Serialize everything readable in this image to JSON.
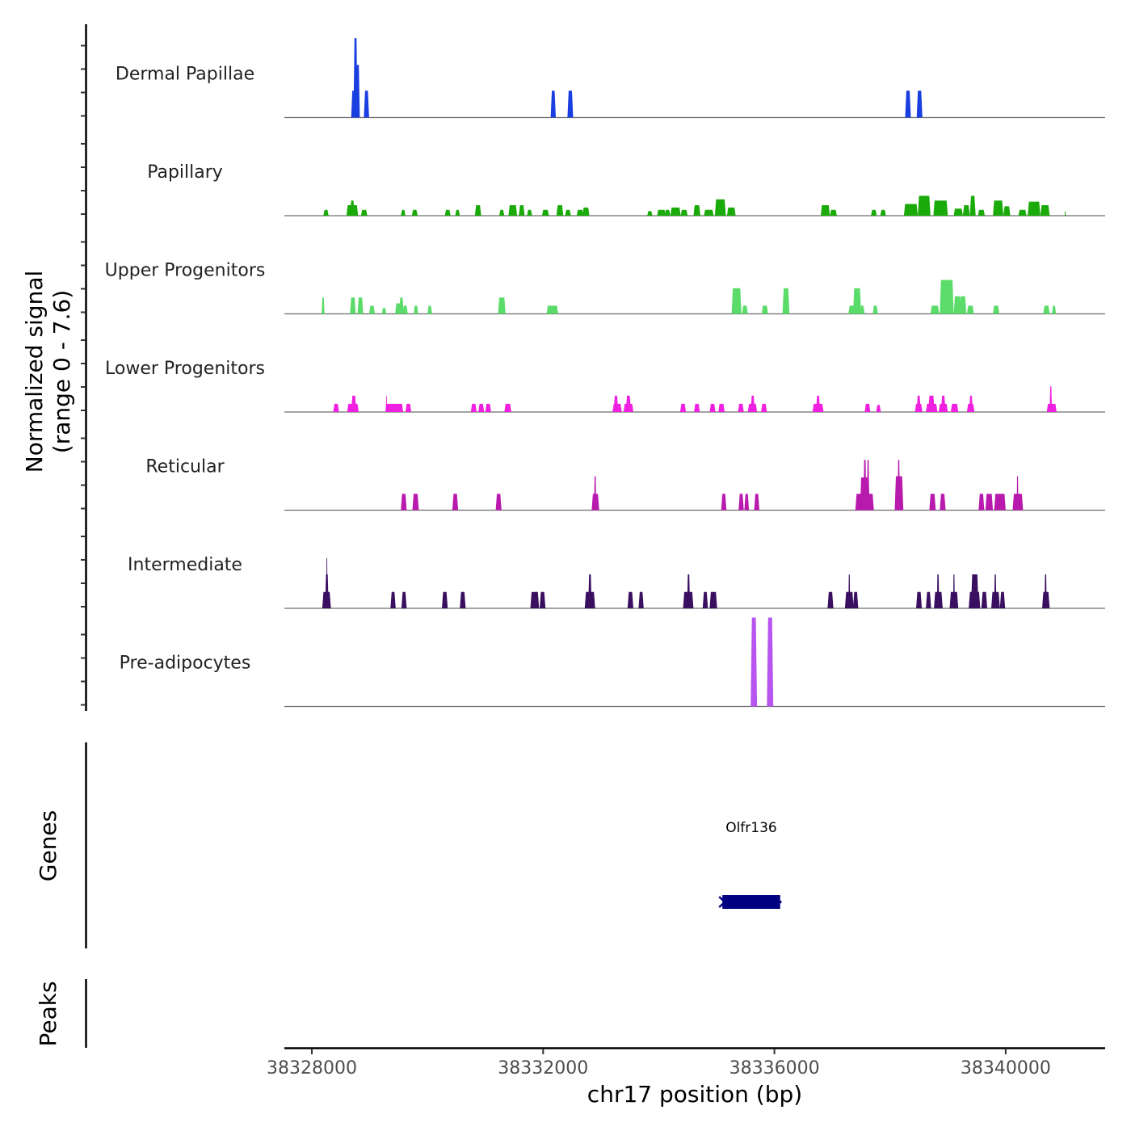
{
  "chart_data": {
    "type": "area",
    "title": "",
    "ylabel": "Normalized signal\n(range 0 - 7.6)",
    "ylabel_lines": [
      "Normalized signal",
      "(range 0 - 7.6)"
    ],
    "xlabel": "chr17 position (bp)",
    "xlim": [
      38327525,
      38341720
    ],
    "ylim": [
      0,
      7.6
    ],
    "x_ticks": [
      38328000,
      38332000,
      38336000,
      38340000
    ],
    "x_tick_labels": [
      "38328000",
      "38332000",
      "38336000",
      "38340000"
    ],
    "grid": false,
    "series": [
      {
        "name": "Dermal Papillae",
        "color": "#1a3fe0",
        "peaks": [
          [
            38328680,
            38328760,
            2.3
          ],
          [
            38328720,
            38328790,
            6.8
          ],
          [
            38328760,
            38328830,
            4.5
          ],
          [
            38328900,
            38328990,
            2.3
          ],
          [
            38332130,
            38332220,
            2.3
          ],
          [
            38332420,
            38332520,
            2.3
          ],
          [
            38338260,
            38338360,
            2.3
          ],
          [
            38338460,
            38338560,
            2.3
          ]
        ]
      },
      {
        "name": "Papillary",
        "color": "#1aaa0a",
        "peaks": [
          [
            38328200,
            38328290,
            0.5
          ],
          [
            38328600,
            38328800,
            0.9
          ],
          [
            38328660,
            38328740,
            1.3
          ],
          [
            38328850,
            38328960,
            0.5
          ],
          [
            38329540,
            38329620,
            0.5
          ],
          [
            38329730,
            38329830,
            0.5
          ],
          [
            38330300,
            38330400,
            0.5
          ],
          [
            38330480,
            38330560,
            0.5
          ],
          [
            38330820,
            38330930,
            0.9
          ],
          [
            38331240,
            38331330,
            0.5
          ],
          [
            38331400,
            38331550,
            0.9
          ],
          [
            38331580,
            38331680,
            0.9
          ],
          [
            38331720,
            38331810,
            0.5
          ],
          [
            38331980,
            38332100,
            0.5
          ],
          [
            38332230,
            38332350,
            0.9
          ],
          [
            38332380,
            38332480,
            0.5
          ],
          [
            38332580,
            38332700,
            0.5
          ],
          [
            38332680,
            38332800,
            0.7
          ],
          [
            38333800,
            38333890,
            0.4
          ],
          [
            38333970,
            38334120,
            0.5
          ],
          [
            38334100,
            38334200,
            0.5
          ],
          [
            38334200,
            38334380,
            0.7
          ],
          [
            38334380,
            38334500,
            0.5
          ],
          [
            38334600,
            38334720,
            0.9
          ],
          [
            38334780,
            38334950,
            0.5
          ],
          [
            38334970,
            38335160,
            1.4
          ],
          [
            38335180,
            38335330,
            0.7
          ],
          [
            38336800,
            38336960,
            0.9
          ],
          [
            38336960,
            38337080,
            0.5
          ],
          [
            38337670,
            38337770,
            0.5
          ],
          [
            38337830,
            38337930,
            0.5
          ],
          [
            38338240,
            38338480,
            1.0
          ],
          [
            38338480,
            38338700,
            1.7
          ],
          [
            38338750,
            38339000,
            1.3
          ],
          [
            38339100,
            38339260,
            0.6
          ],
          [
            38339260,
            38339380,
            0.9
          ],
          [
            38339380,
            38339480,
            1.7
          ],
          [
            38339520,
            38339640,
            0.5
          ],
          [
            38339780,
            38339960,
            1.3
          ],
          [
            38339960,
            38340080,
            0.8
          ],
          [
            38340220,
            38340360,
            0.5
          ],
          [
            38340380,
            38340600,
            1.2
          ],
          [
            38340600,
            38340760,
            0.9
          ],
          [
            38341020,
            38341040,
            0.4
          ]
        ]
      },
      {
        "name": "Upper Progenitors",
        "color": "#5bdc6a",
        "peaks": [
          [
            38328170,
            38328220,
            1.4
          ],
          [
            38328660,
            38328760,
            1.4
          ],
          [
            38328790,
            38328890,
            1.4
          ],
          [
            38328990,
            38329090,
            0.7
          ],
          [
            38329210,
            38329290,
            0.5
          ],
          [
            38329440,
            38329560,
            0.9
          ],
          [
            38329510,
            38329590,
            1.4
          ],
          [
            38329570,
            38329660,
            0.7
          ],
          [
            38329760,
            38329840,
            0.7
          ],
          [
            38330000,
            38330080,
            0.7
          ],
          [
            38331220,
            38331350,
            1.4
          ],
          [
            38332060,
            38332260,
            0.7
          ],
          [
            38335260,
            38335430,
            2.2
          ],
          [
            38335440,
            38335540,
            0.7
          ],
          [
            38335780,
            38335890,
            0.7
          ],
          [
            38336140,
            38336260,
            2.2
          ],
          [
            38337280,
            38337420,
            0.7
          ],
          [
            38337360,
            38337500,
            2.2
          ],
          [
            38337480,
            38337560,
            0.7
          ],
          [
            38337700,
            38337790,
            0.7
          ],
          [
            38338700,
            38338850,
            0.7
          ],
          [
            38338860,
            38339100,
            2.9
          ],
          [
            38339100,
            38339230,
            1.5
          ],
          [
            38339200,
            38339320,
            1.5
          ],
          [
            38339330,
            38339450,
            0.7
          ],
          [
            38339780,
            38339890,
            0.7
          ],
          [
            38340650,
            38340760,
            0.7
          ],
          [
            38340800,
            38340870,
            0.7
          ]
        ]
      },
      {
        "name": "Lower Progenitors",
        "color": "#f020e0",
        "peaks": [
          [
            38328370,
            38328470,
            0.7
          ],
          [
            38328610,
            38328810,
            0.7
          ],
          [
            38328680,
            38328770,
            1.4
          ],
          [
            38329270,
            38329580,
            0.7
          ],
          [
            38329280,
            38329300,
            1.4
          ],
          [
            38329620,
            38329720,
            0.7
          ],
          [
            38330750,
            38330850,
            0.7
          ],
          [
            38330880,
            38330980,
            0.7
          ],
          [
            38331000,
            38331100,
            0.7
          ],
          [
            38331330,
            38331450,
            0.7
          ],
          [
            38333200,
            38333360,
            0.7
          ],
          [
            38333220,
            38333300,
            1.4
          ],
          [
            38333390,
            38333560,
            0.7
          ],
          [
            38333430,
            38333520,
            1.4
          ],
          [
            38334370,
            38334470,
            0.7
          ],
          [
            38334610,
            38334710,
            0.7
          ],
          [
            38334880,
            38334980,
            0.7
          ],
          [
            38335030,
            38335140,
            0.7
          ],
          [
            38335370,
            38335470,
            0.7
          ],
          [
            38335540,
            38335700,
            0.7
          ],
          [
            38335590,
            38335660,
            1.4
          ],
          [
            38335770,
            38335870,
            0.7
          ],
          [
            38336660,
            38336850,
            0.7
          ],
          [
            38336720,
            38336790,
            1.4
          ],
          [
            38337560,
            38337660,
            0.7
          ],
          [
            38337760,
            38337840,
            0.6
          ],
          [
            38338430,
            38338560,
            0.7
          ],
          [
            38338460,
            38338530,
            1.4
          ],
          [
            38338620,
            38338820,
            0.7
          ],
          [
            38338660,
            38338770,
            1.4
          ],
          [
            38338840,
            38339000,
            0.7
          ],
          [
            38338880,
            38338960,
            1.4
          ],
          [
            38339050,
            38339180,
            0.7
          ],
          [
            38339330,
            38339460,
            0.7
          ],
          [
            38339370,
            38339430,
            1.4
          ],
          [
            38340710,
            38340880,
            0.7
          ],
          [
            38340760,
            38340800,
            2.2
          ]
        ]
      },
      {
        "name": "Reticular",
        "color": "#b81aae",
        "peaks": [
          [
            38329540,
            38329640,
            1.4
          ],
          [
            38329740,
            38329850,
            1.4
          ],
          [
            38330430,
            38330530,
            1.4
          ],
          [
            38331180,
            38331280,
            1.4
          ],
          [
            38332840,
            38332970,
            1.4
          ],
          [
            38332880,
            38332920,
            2.9
          ],
          [
            38335080,
            38335170,
            1.4
          ],
          [
            38335380,
            38335470,
            1.4
          ],
          [
            38335480,
            38335560,
            1.4
          ],
          [
            38335650,
            38335740,
            1.4
          ],
          [
            38337400,
            38337720,
            1.4
          ],
          [
            38337480,
            38337650,
            2.8
          ],
          [
            38337540,
            38337590,
            4.3
          ],
          [
            38337600,
            38337640,
            4.3
          ],
          [
            38338080,
            38338230,
            2.9
          ],
          [
            38338130,
            38338170,
            4.3
          ],
          [
            38338680,
            38338790,
            1.4
          ],
          [
            38338860,
            38338960,
            1.4
          ],
          [
            38339530,
            38339630,
            1.4
          ],
          [
            38339650,
            38339780,
            1.4
          ],
          [
            38339800,
            38340000,
            1.4
          ],
          [
            38340120,
            38340300,
            1.4
          ],
          [
            38340190,
            38340220,
            2.9
          ]
        ]
      },
      {
        "name": "Intermediate",
        "color": "#3a0f60",
        "peaks": [
          [
            38328180,
            38328330,
            1.4
          ],
          [
            38328230,
            38328290,
            2.9
          ],
          [
            38328250,
            38328270,
            4.3
          ],
          [
            38329360,
            38329450,
            1.4
          ],
          [
            38329550,
            38329640,
            1.4
          ],
          [
            38330250,
            38330350,
            1.4
          ],
          [
            38330560,
            38330660,
            1.4
          ],
          [
            38331780,
            38331930,
            1.4
          ],
          [
            38331940,
            38332040,
            1.4
          ],
          [
            38332720,
            38332900,
            1.4
          ],
          [
            38332780,
            38332840,
            2.9
          ],
          [
            38333460,
            38333560,
            1.4
          ],
          [
            38333650,
            38333740,
            1.4
          ],
          [
            38334420,
            38334600,
            1.4
          ],
          [
            38334490,
            38334540,
            2.9
          ],
          [
            38334760,
            38334850,
            1.4
          ],
          [
            38334880,
            38335010,
            1.4
          ],
          [
            38336920,
            38337020,
            1.4
          ],
          [
            38337220,
            38337370,
            1.4
          ],
          [
            38337280,
            38337310,
            2.9
          ],
          [
            38337360,
            38337450,
            1.4
          ],
          [
            38338450,
            38338550,
            1.4
          ],
          [
            38338620,
            38338710,
            1.4
          ],
          [
            38338760,
            38338910,
            1.4
          ],
          [
            38338810,
            38338850,
            2.9
          ],
          [
            38339030,
            38339180,
            1.4
          ],
          [
            38339090,
            38339120,
            2.9
          ],
          [
            38339360,
            38339560,
            1.4
          ],
          [
            38339400,
            38339530,
            2.9
          ],
          [
            38339580,
            38339680,
            1.4
          ],
          [
            38339750,
            38339900,
            1.4
          ],
          [
            38339800,
            38339840,
            2.9
          ],
          [
            38339900,
            38339990,
            1.4
          ],
          [
            38340630,
            38340760,
            1.4
          ],
          [
            38340670,
            38340710,
            2.9
          ]
        ]
      },
      {
        "name": "Pre-adipocytes",
        "color": "#b855f0",
        "peaks": [
          [
            38335590,
            38335700,
            7.6
          ],
          [
            38335870,
            38335980,
            7.6
          ]
        ]
      }
    ],
    "genes_track": {
      "label": "Genes",
      "genes": [
        {
          "name": "Olfr136",
          "start": 38335100,
          "end": 38336100,
          "strand": "-",
          "color": "#000080"
        }
      ]
    },
    "peaks_track": {
      "label": "Peaks",
      "peaks": []
    }
  }
}
